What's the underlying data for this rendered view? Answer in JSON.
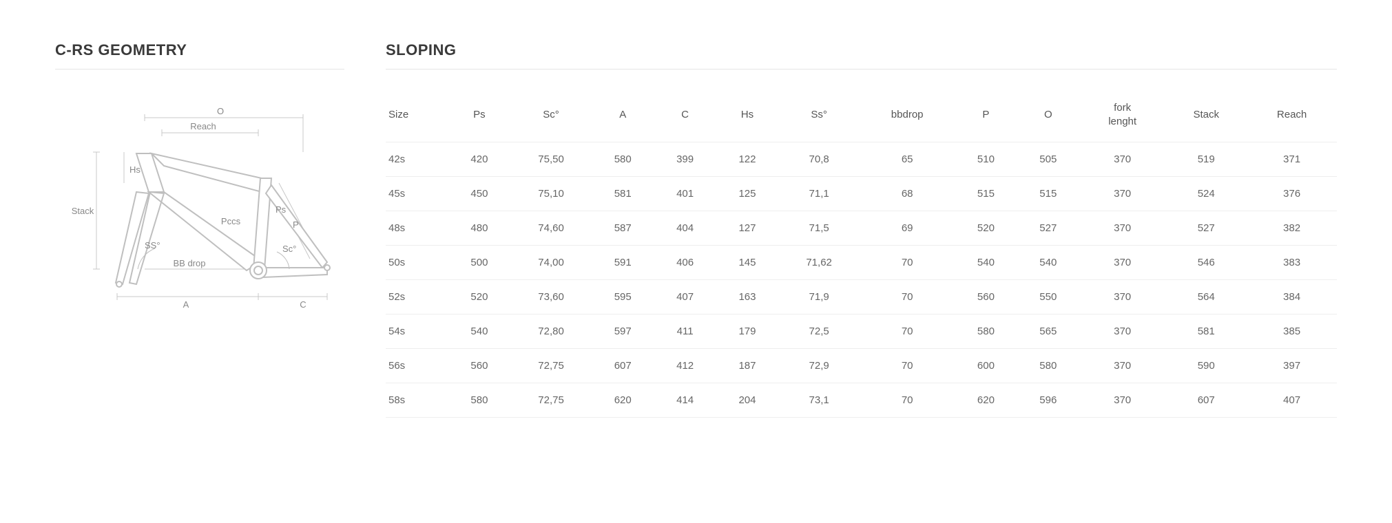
{
  "left_title": "C-RS GEOMETRY",
  "right_title": "SLOPING",
  "diagram_labels": {
    "O": "O",
    "Reach": "Reach",
    "Hs": "Hs",
    "Stack": "Stack",
    "Pccs": "Pccs",
    "Ps": "Ps",
    "P": "P",
    "SS": "SS°",
    "Sc": "Sc°",
    "BBdrop": "BB drop",
    "A": "A",
    "C": "C"
  },
  "table": {
    "columns": [
      "Size",
      "Ps",
      "Sc°",
      "A",
      "C",
      "Hs",
      "Ss°",
      "bbdrop",
      "P",
      "O",
      "fork lenght",
      "Stack",
      "Reach"
    ],
    "rows": [
      [
        "42s",
        "420",
        "75,50",
        "580",
        "399",
        "122",
        "70,8",
        "65",
        "510",
        "505",
        "370",
        "519",
        "371"
      ],
      [
        "45s",
        "450",
        "75,10",
        "581",
        "401",
        "125",
        "71,1",
        "68",
        "515",
        "515",
        "370",
        "524",
        "376"
      ],
      [
        "48s",
        "480",
        "74,60",
        "587",
        "404",
        "127",
        "71,5",
        "69",
        "520",
        "527",
        "370",
        "527",
        "382"
      ],
      [
        "50s",
        "500",
        "74,00",
        "591",
        "406",
        "145",
        "71,62",
        "70",
        "540",
        "540",
        "370",
        "546",
        "383"
      ],
      [
        "52s",
        "520",
        "73,60",
        "595",
        "407",
        "163",
        "71,9",
        "70",
        "560",
        "550",
        "370",
        "564",
        "384"
      ],
      [
        "54s",
        "540",
        "72,80",
        "597",
        "411",
        "179",
        "72,5",
        "70",
        "580",
        "565",
        "370",
        "581",
        "385"
      ],
      [
        "56s",
        "560",
        "72,75",
        "607",
        "412",
        "187",
        "72,9",
        "70",
        "600",
        "580",
        "370",
        "590",
        "397"
      ],
      [
        "58s",
        "580",
        "72,75",
        "620",
        "414",
        "204",
        "73,1",
        "70",
        "620",
        "596",
        "370",
        "607",
        "407"
      ]
    ]
  },
  "style": {
    "background": "#ffffff",
    "text_color": "#555555",
    "title_color": "#3a3a3a",
    "border_color": "#eeeeee",
    "diagram_stroke": "#bfbfbf",
    "diagram_guide": "#c8c8c8",
    "diagram_label_color": "#888888",
    "title_fontsize": 22,
    "body_fontsize": 15
  }
}
